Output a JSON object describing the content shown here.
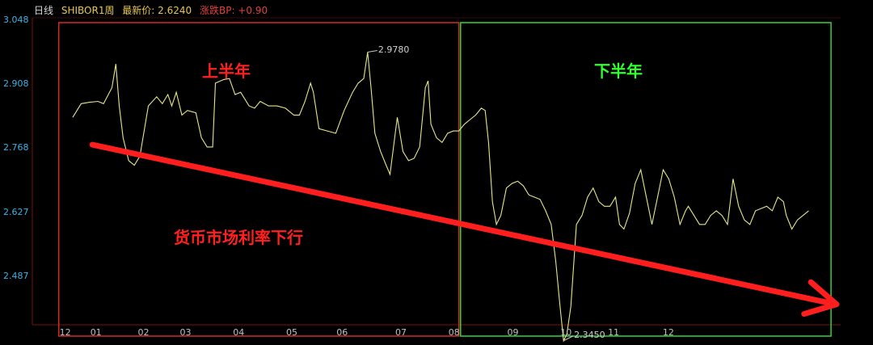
{
  "header": {
    "period": "日线",
    "instrument": "SHIBOR1周",
    "latest_label": "最新价: 2.6240",
    "change_label": "涨跌BP: +0.90"
  },
  "annotations": {
    "first_half": "上半年",
    "second_half": "下半年",
    "trend_note": "货币市场利率下行"
  },
  "colors": {
    "background": "#000000",
    "line": "#e6e68c",
    "first_half_box": "#d42a2a",
    "second_half_box": "#35d435",
    "trend_arrow": "#ff1e1e",
    "axis_label": "#3ab4e6",
    "header_yellow": "#e8c84a",
    "header_red": "#e04040"
  },
  "chart_data": {
    "type": "line",
    "title": "",
    "xlabel": "",
    "ylabel": "",
    "ylim": [
      2.38,
      3.048
    ],
    "y_ticks": [
      "3.048",
      "2.908",
      "2.768",
      "2.627",
      "2.487"
    ],
    "x_ticks": [
      "12",
      "01",
      "02",
      "03",
      "04",
      "05",
      "06",
      "07",
      "08",
      "09",
      "10",
      "11",
      "12"
    ],
    "x_tick_positions": [
      -0.1,
      0.45,
      1.3,
      2.05,
      3.0,
      3.95,
      4.85,
      5.9,
      6.85,
      7.9,
      8.85,
      9.7,
      10.68
    ],
    "high_label": "2.9780",
    "low_label": "2.3450",
    "series": [
      {
        "values": [
          [
            0.05,
            2.835
          ],
          [
            0.2,
            2.865
          ],
          [
            0.35,
            2.868
          ],
          [
            0.5,
            2.87
          ],
          [
            0.6,
            2.865
          ],
          [
            0.75,
            2.9
          ],
          [
            0.82,
            2.952
          ],
          [
            0.88,
            2.86
          ],
          [
            0.95,
            2.79
          ],
          [
            1.05,
            2.74
          ],
          [
            1.15,
            2.73
          ],
          [
            1.25,
            2.75
          ],
          [
            1.4,
            2.86
          ],
          [
            1.55,
            2.88
          ],
          [
            1.65,
            2.865
          ],
          [
            1.75,
            2.885
          ],
          [
            1.82,
            2.86
          ],
          [
            1.9,
            2.89
          ],
          [
            2.0,
            2.84
          ],
          [
            2.1,
            2.85
          ],
          [
            2.25,
            2.845
          ],
          [
            2.35,
            2.79
          ],
          [
            2.45,
            2.77
          ],
          [
            2.55,
            2.77
          ],
          [
            2.6,
            2.91
          ],
          [
            2.75,
            2.918
          ],
          [
            2.85,
            2.92
          ],
          [
            2.95,
            2.885
          ],
          [
            3.05,
            2.89
          ],
          [
            3.2,
            2.86
          ],
          [
            3.3,
            2.855
          ],
          [
            3.4,
            2.87
          ],
          [
            3.55,
            2.86
          ],
          [
            3.7,
            2.86
          ],
          [
            3.85,
            2.855
          ],
          [
            4.0,
            2.84
          ],
          [
            4.1,
            2.84
          ],
          [
            4.2,
            2.87
          ],
          [
            4.3,
            2.91
          ],
          [
            4.35,
            2.89
          ],
          [
            4.45,
            2.81
          ],
          [
            4.6,
            2.805
          ],
          [
            4.75,
            2.8
          ],
          [
            4.9,
            2.85
          ],
          [
            5.05,
            2.89
          ],
          [
            5.15,
            2.91
          ],
          [
            5.25,
            2.92
          ],
          [
            5.32,
            2.978
          ],
          [
            5.38,
            2.9
          ],
          [
            5.45,
            2.8
          ],
          [
            5.55,
            2.76
          ],
          [
            5.65,
            2.73
          ],
          [
            5.72,
            2.71
          ],
          [
            5.85,
            2.835
          ],
          [
            5.95,
            2.76
          ],
          [
            6.05,
            2.74
          ],
          [
            6.15,
            2.745
          ],
          [
            6.25,
            2.77
          ],
          [
            6.35,
            2.9
          ],
          [
            6.4,
            2.915
          ],
          [
            6.45,
            2.82
          ],
          [
            6.55,
            2.79
          ],
          [
            6.65,
            2.78
          ],
          [
            6.75,
            2.8
          ],
          [
            6.85,
            2.805
          ],
          [
            6.95,
            2.805
          ],
          [
            7.05,
            2.82
          ],
          [
            7.15,
            2.83
          ],
          [
            7.25,
            2.84
          ],
          [
            7.35,
            2.855
          ],
          [
            7.42,
            2.85
          ],
          [
            7.48,
            2.78
          ],
          [
            7.55,
            2.65
          ],
          [
            7.62,
            2.6
          ],
          [
            7.7,
            2.62
          ],
          [
            7.8,
            2.68
          ],
          [
            7.9,
            2.69
          ],
          [
            8.0,
            2.695
          ],
          [
            8.1,
            2.685
          ],
          [
            8.2,
            2.665
          ],
          [
            8.3,
            2.66
          ],
          [
            8.4,
            2.655
          ],
          [
            8.5,
            2.63
          ],
          [
            8.6,
            2.6
          ],
          [
            8.68,
            2.52
          ],
          [
            8.75,
            2.43
          ],
          [
            8.82,
            2.345
          ],
          [
            8.88,
            2.36
          ],
          [
            8.95,
            2.42
          ],
          [
            9.05,
            2.6
          ],
          [
            9.15,
            2.62
          ],
          [
            9.25,
            2.66
          ],
          [
            9.35,
            2.68
          ],
          [
            9.45,
            2.65
          ],
          [
            9.55,
            2.64
          ],
          [
            9.65,
            2.64
          ],
          [
            9.75,
            2.66
          ],
          [
            9.82,
            2.6
          ],
          [
            9.9,
            2.59
          ],
          [
            10.0,
            2.625
          ],
          [
            10.1,
            2.69
          ],
          [
            10.2,
            2.72
          ],
          [
            10.3,
            2.66
          ],
          [
            10.4,
            2.6
          ],
          [
            10.5,
            2.66
          ],
          [
            10.6,
            2.72
          ],
          [
            10.7,
            2.7
          ],
          [
            10.8,
            2.66
          ],
          [
            10.9,
            2.6
          ],
          [
            11.0,
            2.63
          ],
          [
            11.05,
            2.64
          ],
          [
            11.15,
            2.62
          ],
          [
            11.25,
            2.6
          ],
          [
            11.35,
            2.6
          ],
          [
            11.45,
            2.62
          ],
          [
            11.55,
            2.63
          ],
          [
            11.65,
            2.62
          ],
          [
            11.75,
            2.6
          ],
          [
            11.8,
            2.65
          ],
          [
            11.85,
            2.7
          ],
          [
            11.95,
            2.64
          ],
          [
            12.05,
            2.61
          ],
          [
            12.15,
            2.6
          ],
          [
            12.25,
            2.63
          ],
          [
            12.35,
            2.635
          ],
          [
            12.45,
            2.64
          ],
          [
            12.55,
            2.63
          ],
          [
            12.65,
            2.66
          ],
          [
            12.75,
            2.65
          ],
          [
            12.8,
            2.62
          ],
          [
            12.9,
            2.59
          ],
          [
            13.0,
            2.61
          ],
          [
            13.1,
            2.62
          ],
          [
            13.2,
            2.63
          ]
        ]
      }
    ],
    "regions": [
      {
        "label": "上半年",
        "x_start": -0.2,
        "x_end": 6.95
      },
      {
        "label": "下半年",
        "x_start": 6.98,
        "x_end": 13.6
      }
    ],
    "trend_arrow": {
      "from": [
        0.4,
        2.775
      ],
      "to": [
        13.7,
        2.425
      ]
    }
  }
}
